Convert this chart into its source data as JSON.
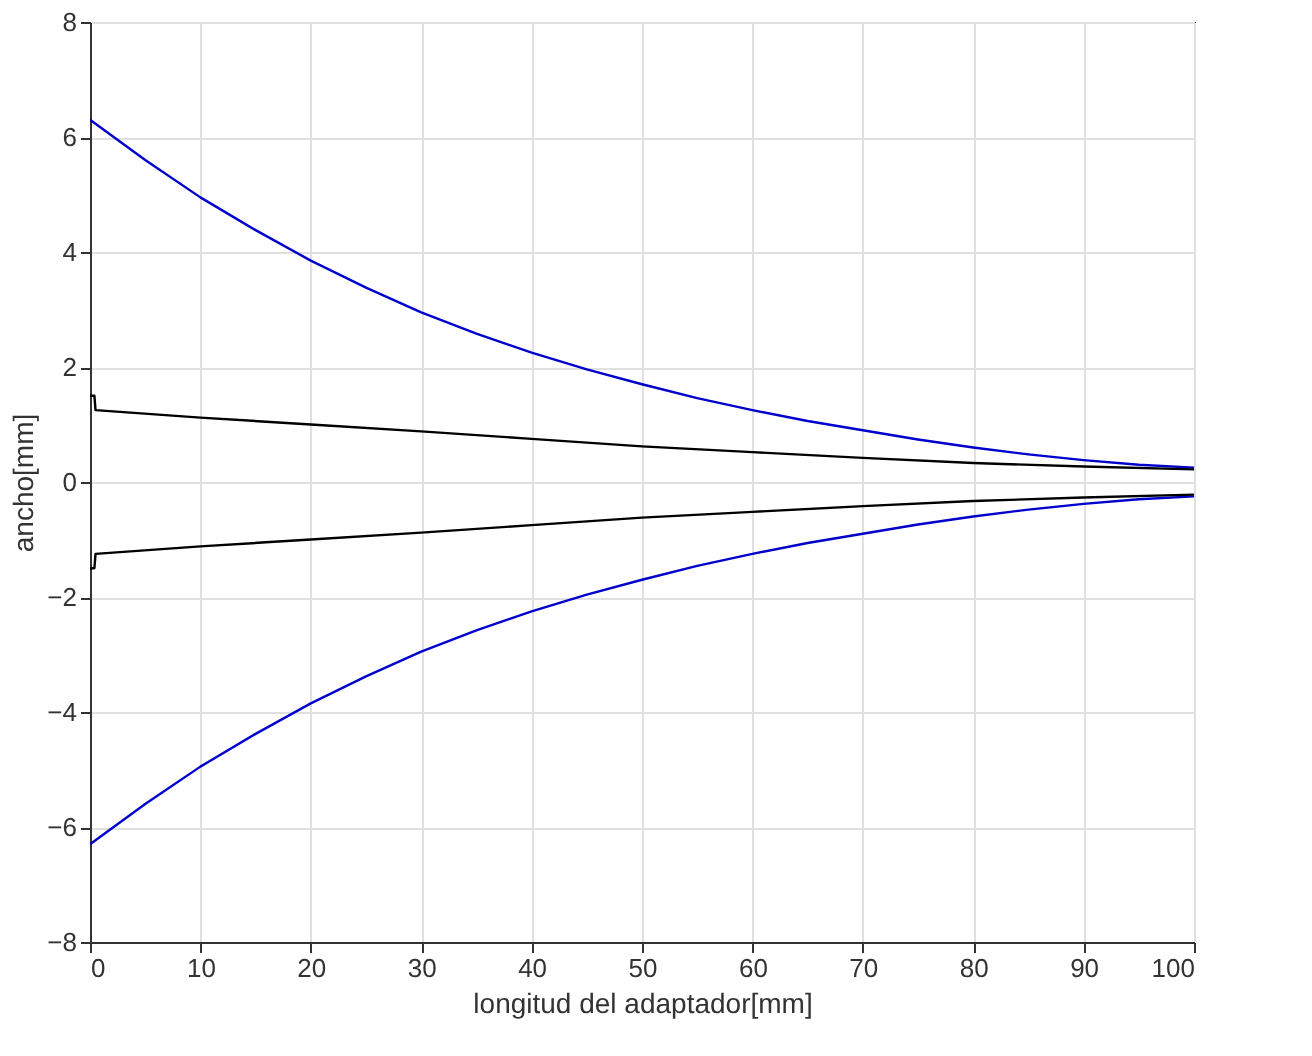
{
  "chart_data": {
    "type": "line",
    "xlabel": "longitud del adaptador[mm]",
    "ylabel": "ancho[mm]",
    "xlim": [
      0,
      100
    ],
    "xticks": [
      0,
      10,
      20,
      30,
      40,
      50,
      60,
      70,
      80,
      90,
      100
    ],
    "ylim": [
      -8,
      8
    ],
    "yticks": [
      -8,
      -6,
      -4,
      -2,
      0,
      2,
      4,
      6,
      8
    ],
    "grid": true,
    "legend": false,
    "marker": "none",
    "line_style": "solid",
    "series": [
      {
        "color": "#0000cc",
        "x": [
          0,
          5,
          10,
          15,
          20,
          25,
          30,
          35,
          40,
          45,
          50,
          55,
          60,
          65,
          70,
          75,
          80,
          85,
          90,
          95,
          100
        ],
        "values": [
          6.3,
          5.6,
          4.95,
          4.38,
          3.85,
          3.38,
          2.95,
          2.58,
          2.25,
          1.96,
          1.7,
          1.46,
          1.25,
          1.06,
          0.9,
          0.74,
          0.6,
          0.48,
          0.38,
          0.3,
          0.25
        ]
      },
      {
        "color": "#0000cc",
        "x": [
          0,
          5,
          10,
          15,
          20,
          25,
          30,
          35,
          40,
          45,
          50,
          55,
          60,
          65,
          70,
          75,
          80,
          85,
          90,
          95,
          100
        ],
        "values": [
          -6.3,
          -5.6,
          -4.95,
          -4.38,
          -3.85,
          -3.38,
          -2.95,
          -2.58,
          -2.25,
          -1.96,
          -1.7,
          -1.46,
          -1.25,
          -1.06,
          -0.9,
          -0.74,
          -0.6,
          -0.48,
          -0.38,
          -0.3,
          -0.25
        ]
      },
      {
        "color": "#000000",
        "x": [
          0,
          0.4,
          0.5,
          10,
          20,
          30,
          40,
          50,
          60,
          70,
          80,
          90,
          100
        ],
        "values": [
          1.5,
          1.5,
          1.25,
          1.12,
          1.0,
          0.88,
          0.75,
          0.62,
          0.52,
          0.42,
          0.33,
          0.27,
          0.22
        ]
      },
      {
        "color": "#000000",
        "x": [
          0,
          0.4,
          0.5,
          10,
          20,
          30,
          40,
          50,
          60,
          70,
          80,
          90,
          100
        ],
        "values": [
          -1.5,
          -1.5,
          -1.25,
          -1.12,
          -1.0,
          -0.88,
          -0.75,
          -0.62,
          -0.52,
          -0.42,
          -0.33,
          -0.27,
          -0.22
        ]
      }
    ]
  }
}
